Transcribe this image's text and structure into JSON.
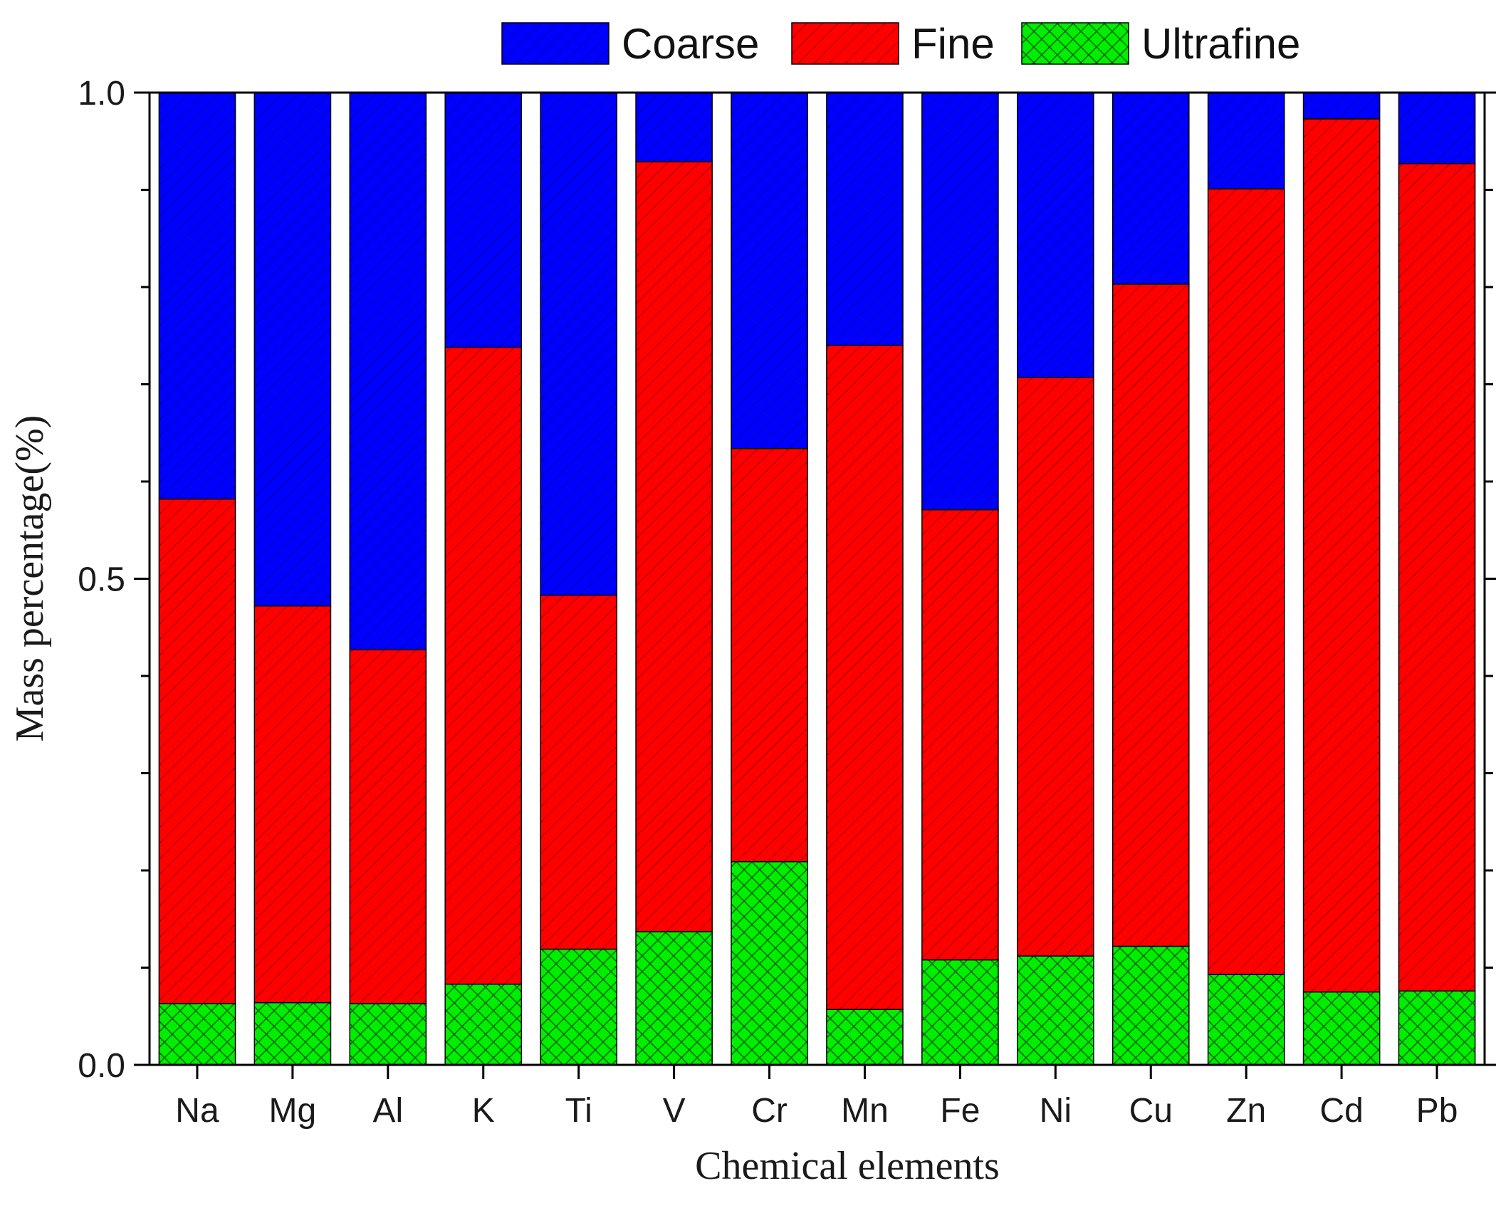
{
  "chart_data": {
    "type": "bar",
    "stacked": true,
    "title": "",
    "xlabel": "Chemical elements",
    "ylabel": "Mass percentage(%)",
    "ylim": [
      0,
      1
    ],
    "yticks": [
      "0.0",
      "0.5",
      "1.0"
    ],
    "legend_position": "top",
    "categories": [
      "Na",
      "Mg",
      "Al",
      "K",
      "Ti",
      "V",
      "Cr",
      "Mn",
      "Fe",
      "Ni",
      "Cu",
      "Zn",
      "Cd",
      "Pb"
    ],
    "series": [
      {
        "name": "Ultrafine",
        "color": "#00ee00",
        "pattern": "crosshatch",
        "values": [
          0.063,
          0.064,
          0.063,
          0.083,
          0.119,
          0.137,
          0.209,
          0.057,
          0.108,
          0.112,
          0.122,
          0.093,
          0.075,
          0.076
        ]
      },
      {
        "name": "Fine",
        "color": "#ff0000",
        "pattern": "diagonal",
        "values": [
          0.519,
          0.408,
          0.364,
          0.655,
          0.364,
          0.792,
          0.425,
          0.683,
          0.463,
          0.595,
          0.681,
          0.808,
          0.898,
          0.851
        ]
      },
      {
        "name": "Coarse",
        "color": "#0000ff",
        "pattern": "diagonal",
        "values": [
          0.418,
          0.528,
          0.573,
          0.262,
          0.517,
          0.071,
          0.366,
          0.26,
          0.429,
          0.293,
          0.197,
          0.099,
          0.027,
          0.073
        ]
      }
    ],
    "legend_order": [
      "Coarse",
      "Fine",
      "Ultrafine"
    ]
  }
}
